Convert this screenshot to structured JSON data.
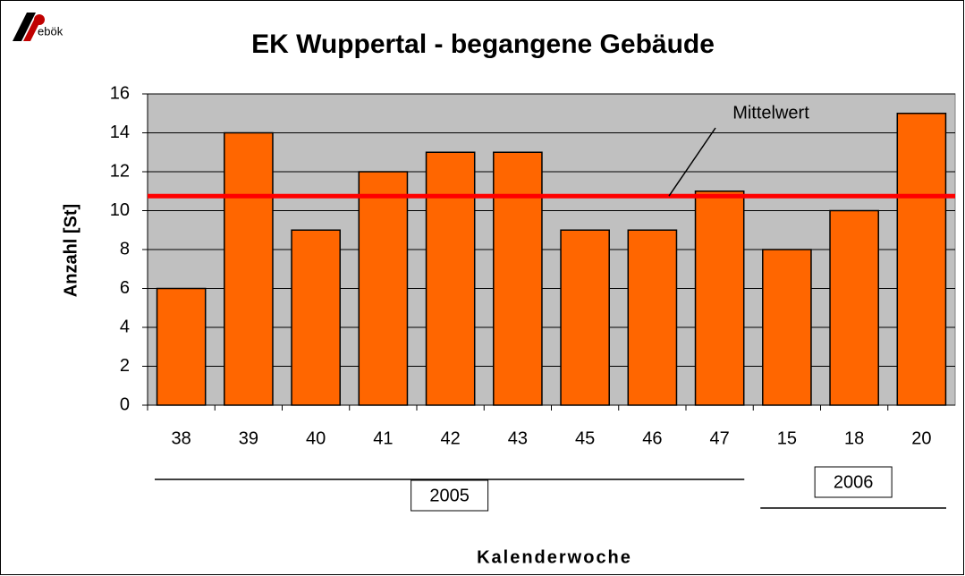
{
  "logo": "ebök",
  "chart_data": {
    "type": "bar",
    "title": "EK Wuppertal - begangene Gebäude",
    "ylabel": "Anzahl [St]",
    "xlabel": "Kalenderwoche",
    "categories": [
      "38",
      "39",
      "40",
      "41",
      "42",
      "43",
      "45",
      "46",
      "47",
      "15",
      "18",
      "20"
    ],
    "values": [
      6,
      14,
      9,
      12,
      13,
      13,
      9,
      9,
      11,
      8,
      10,
      15
    ],
    "color": "#ff6600",
    "ylim": [
      0,
      16
    ],
    "yticks": [
      0,
      2,
      4,
      6,
      8,
      10,
      12,
      14,
      16
    ],
    "grid": true,
    "mean": 10.75,
    "mean_label": "Mittelwert",
    "mean_color": "#ff0000",
    "groups": [
      {
        "label": "2005",
        "count": 9
      },
      {
        "label": "2006",
        "count": 3
      }
    ]
  }
}
